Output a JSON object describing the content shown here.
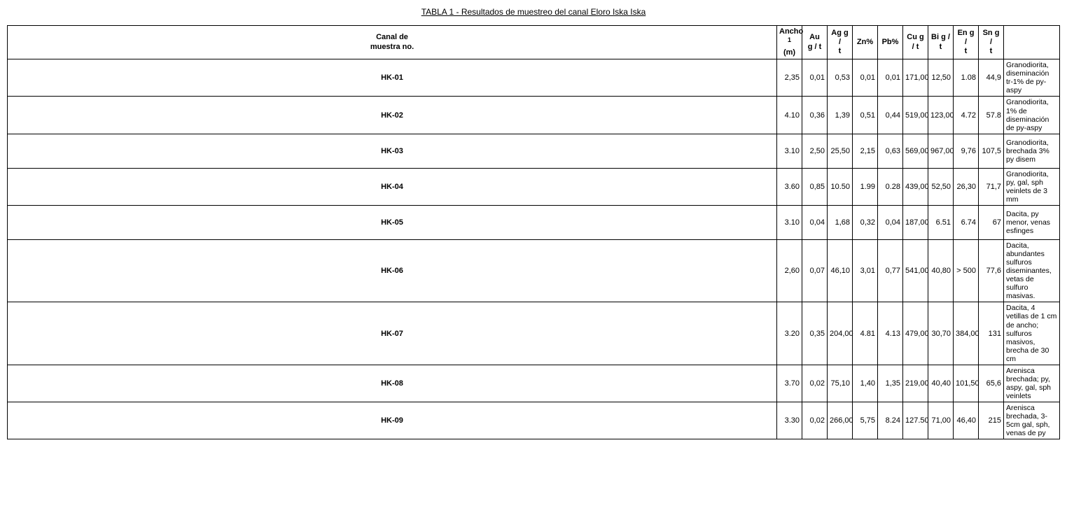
{
  "title": "TABLA 1 - Resultados de muestreo del canal Eloro Iska Iska",
  "table": {
    "columns": [
      {
        "key": "sample",
        "label": "Canal de\nmuestra no.",
        "class": "col-sample",
        "align": "center",
        "bold": true
      },
      {
        "key": "ancho",
        "label_html": "Ancho<br><span class='sup'>1</span><br>(m)",
        "class": "col-narrow",
        "align": "right"
      },
      {
        "key": "au",
        "label": "Au\ng / t",
        "class": "col-narrow",
        "align": "right"
      },
      {
        "key": "ag",
        "label": "Ag g /\nt",
        "class": "col-narrow",
        "align": "right"
      },
      {
        "key": "zn",
        "label": "Zn%",
        "class": "col-narrow",
        "align": "right"
      },
      {
        "key": "pb",
        "label": "Pb%",
        "class": "col-narrow",
        "align": "right"
      },
      {
        "key": "cu",
        "label": "Cu g / t",
        "class": "col-narrow",
        "align": "right"
      },
      {
        "key": "bi",
        "label": "Bi g / t",
        "class": "col-narrow",
        "align": "right"
      },
      {
        "key": "en",
        "label": "En g /\nt",
        "class": "col-narrow",
        "align": "right"
      },
      {
        "key": "sn",
        "label": "Sn g /\nt",
        "class": "col-narrow",
        "align": "right"
      },
      {
        "key": "desc",
        "label": "",
        "class": "col-desc",
        "align": "left"
      }
    ],
    "rows": [
      {
        "sample": "HK-01",
        "ancho": "2,35",
        "au": "0,01",
        "ag": "0,53",
        "zn": "0,01",
        "pb": "0,01",
        "cu": "171,00",
        "bi": "12,50",
        "en": "1.08",
        "sn": "44,9",
        "desc": "Granodiorita, diseminación tr-1% de py-aspy"
      },
      {
        "sample": "HK-02",
        "ancho": "4.10",
        "au": "0,36",
        "ag": "1,39",
        "zn": "0,51",
        "pb": "0,44",
        "cu": "519,00",
        "bi": "123,00",
        "en": "4.72",
        "sn": "57.8",
        "desc": "Granodiorita, 1% de diseminación de py-aspy"
      },
      {
        "sample": "HK-03",
        "ancho": "3.10",
        "au": "2,50",
        "ag": "25,50",
        "zn": "2,15",
        "pb": "0,63",
        "cu": "569,00",
        "bi": "967,00",
        "en": "9,76",
        "sn": "107,5",
        "desc": "Granodiorita, brechada 3% py disem"
      },
      {
        "sample": "HK-04",
        "ancho": "3.60",
        "au": "0,85",
        "ag": "10.50",
        "zn": "1.99",
        "pb": "0.28",
        "cu": "439,00",
        "bi": "52,50",
        "en": "26,30",
        "sn": "71,7",
        "desc": "Granodiorita, py, gal, sph veinlets de 3 mm"
      },
      {
        "sample": "HK-05",
        "ancho": "3.10",
        "au": "0,04",
        "ag": "1,68",
        "zn": "0,32",
        "pb": "0,04",
        "cu": "187,00",
        "bi": "6.51",
        "en": "6.74",
        "sn": "67",
        "desc": "Dacita, py menor, venas esfinges"
      },
      {
        "sample": "HK-06",
        "ancho": "2,60",
        "au": "0,07",
        "ag": "46,10",
        "zn": "3,01",
        "pb": "0,77",
        "cu": "541,00",
        "bi": "40,80",
        "en": "> 500",
        "sn": "77,6",
        "desc": "Dacita, abundantes sulfuros diseminantes, vetas de sulfuro masivas."
      },
      {
        "sample": "HK-07",
        "ancho": "3.20",
        "au": "0,35",
        "ag": "204,00",
        "zn": "4.81",
        "pb": "4.13",
        "cu": "479,00",
        "bi": "30,70",
        "en": "384,00",
        "sn": "131",
        "desc": "Dacita, 4 vetillas de 1 cm de ancho; sulfuros masivos, brecha de 30 cm"
      },
      {
        "sample": "HK-08",
        "ancho": "3.70",
        "au": "0,02",
        "ag": "75,10",
        "zn": "1,40",
        "pb": "1,35",
        "cu": "219,00",
        "bi": "40,40",
        "en": "101,50",
        "sn": "65,6",
        "desc": "Arenisca brechada; py, aspy, gal, sph veinlets"
      },
      {
        "sample": "HK-09",
        "ancho": "3.30",
        "au": "0,02",
        "ag": "266,00",
        "zn": "5,75",
        "pb": "8.24",
        "cu": "127.50",
        "bi": "71,00",
        "en": "46,40",
        "sn": "215",
        "desc": "Arenisca brechada, 3-5cm gal, sph, venas de py"
      }
    ],
    "style": {
      "border_color": "#000000",
      "background_color": "#ffffff",
      "font_family": "Arial",
      "header_fontsize": 11,
      "cell_fontsize": 11,
      "desc_fontsize": 10.5
    }
  }
}
